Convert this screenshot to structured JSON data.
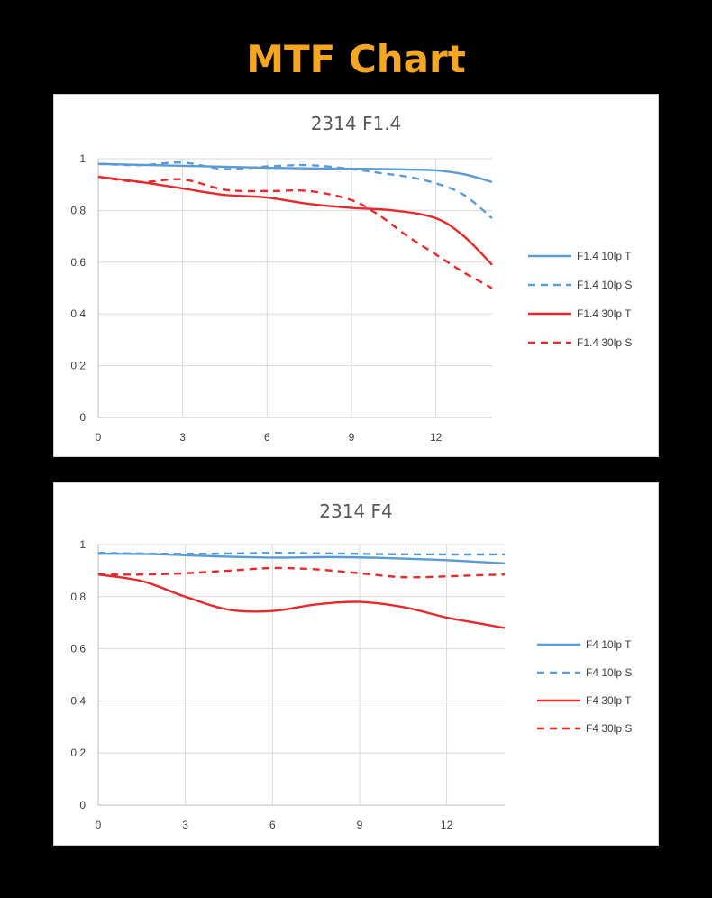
{
  "page": {
    "title": "MTF Chart",
    "title_color": "#F5A623"
  },
  "chart_data": [
    {
      "type": "line",
      "title": "2314 F1.4",
      "xlabel": "",
      "ylabel": "",
      "xlim": [
        0,
        14
      ],
      "ylim": [
        0,
        1
      ],
      "xticks": [
        0,
        3,
        6,
        9,
        12
      ],
      "yticks": [
        0,
        0.2,
        0.4,
        0.6,
        0.8,
        1
      ],
      "grid": true,
      "legend_position": "right",
      "series": [
        {
          "name": "F1.4 10lp T",
          "color": "#5B9BD5",
          "dash": "solid",
          "x": [
            0,
            2,
            4,
            6,
            8,
            10,
            11,
            12,
            13,
            14
          ],
          "y": [
            0.98,
            0.975,
            0.97,
            0.965,
            0.962,
            0.96,
            0.958,
            0.955,
            0.94,
            0.91
          ]
        },
        {
          "name": "F1.4 10lp S",
          "color": "#5B9BD5",
          "dash": "dashed",
          "x": [
            0,
            1.5,
            3,
            4.5,
            6,
            7.5,
            9,
            10,
            11,
            12,
            13,
            14
          ],
          "y": [
            0.98,
            0.975,
            0.985,
            0.96,
            0.97,
            0.975,
            0.96,
            0.945,
            0.93,
            0.905,
            0.86,
            0.77
          ]
        },
        {
          "name": "F1.4 30lp T",
          "color": "#E8292B",
          "dash": "solid",
          "x": [
            0,
            1.5,
            3,
            4.5,
            6,
            7.5,
            9,
            10.5,
            12,
            13,
            14
          ],
          "y": [
            0.93,
            0.91,
            0.885,
            0.86,
            0.85,
            0.825,
            0.81,
            0.8,
            0.77,
            0.7,
            0.59
          ]
        },
        {
          "name": "F1.4 30lp S",
          "color": "#E8292B",
          "dash": "dashed",
          "x": [
            0,
            1.5,
            3,
            4.5,
            6,
            7.5,
            9,
            10,
            11,
            12,
            13,
            14
          ],
          "y": [
            0.93,
            0.91,
            0.92,
            0.88,
            0.875,
            0.875,
            0.84,
            0.78,
            0.7,
            0.63,
            0.56,
            0.5
          ]
        }
      ]
    },
    {
      "type": "line",
      "title": "2314 F4",
      "xlabel": "",
      "ylabel": "",
      "xlim": [
        0,
        14
      ],
      "ylim": [
        0,
        1
      ],
      "xticks": [
        0,
        3,
        6,
        9,
        12
      ],
      "yticks": [
        0,
        0.2,
        0.4,
        0.6,
        0.8,
        1
      ],
      "grid": true,
      "legend_position": "right",
      "series": [
        {
          "name": "F4 10lp T",
          "color": "#5B9BD5",
          "dash": "solid",
          "x": [
            0,
            2,
            4,
            6,
            8,
            10,
            12,
            14
          ],
          "y": [
            0.965,
            0.963,
            0.955,
            0.95,
            0.952,
            0.948,
            0.94,
            0.928
          ]
        },
        {
          "name": "F4 10lp S",
          "color": "#5B9BD5",
          "dash": "dashed",
          "x": [
            0,
            2,
            4,
            6,
            8,
            10,
            12,
            14
          ],
          "y": [
            0.968,
            0.965,
            0.965,
            0.968,
            0.966,
            0.963,
            0.962,
            0.962
          ]
        },
        {
          "name": "F4 30lp T",
          "color": "#E8292B",
          "dash": "solid",
          "x": [
            0,
            1.5,
            3,
            4.5,
            6,
            7.5,
            9,
            10.5,
            12,
            13,
            14
          ],
          "y": [
            0.885,
            0.86,
            0.8,
            0.75,
            0.745,
            0.77,
            0.78,
            0.76,
            0.72,
            0.7,
            0.68
          ]
        },
        {
          "name": "F4 30lp S",
          "color": "#E8292B",
          "dash": "dashed",
          "x": [
            0,
            1.5,
            3,
            4.5,
            6,
            7.5,
            9,
            10.5,
            12,
            13,
            14
          ],
          "y": [
            0.885,
            0.885,
            0.89,
            0.9,
            0.91,
            0.905,
            0.89,
            0.875,
            0.878,
            0.882,
            0.885
          ]
        }
      ]
    }
  ]
}
